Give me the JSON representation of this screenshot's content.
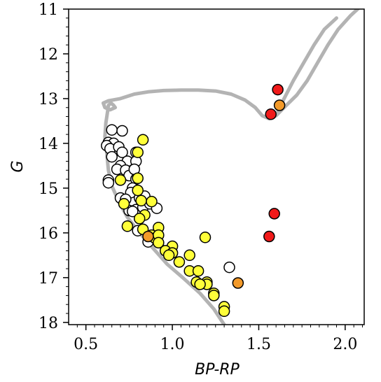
{
  "chart_data": {
    "type": "scatter",
    "xlabel": "BP-RP",
    "ylabel": "G",
    "xlim": [
      0.4,
      2.11
    ],
    "ylim": [
      18.05,
      11.0
    ],
    "y_inverted": true,
    "x_ticks": [
      0.5,
      1.0,
      1.5,
      2.0
    ],
    "x_tick_labels": [
      "0.5",
      "1.0",
      "1.5",
      "2.0"
    ],
    "y_ticks": [
      11,
      12,
      13,
      14,
      15,
      16,
      17,
      18
    ],
    "y_tick_labels": [
      "11",
      "12",
      "13",
      "14",
      "15",
      "16",
      "17",
      "18"
    ],
    "grid": false,
    "legend": false,
    "isochrone": {
      "color": "#b3b3b3",
      "points": [
        [
          1.3,
          18.05
        ],
        [
          1.24,
          17.7
        ],
        [
          1.16,
          17.35
        ],
        [
          1.06,
          17.0
        ],
        [
          0.97,
          16.7
        ],
        [
          0.89,
          16.35
        ],
        [
          0.81,
          16.0
        ],
        [
          0.74,
          15.65
        ],
        [
          0.69,
          15.3
        ],
        [
          0.65,
          14.95
        ],
        [
          0.63,
          14.6
        ],
        [
          0.62,
          14.2
        ],
        [
          0.61,
          13.85
        ],
        [
          0.615,
          13.55
        ],
        [
          0.625,
          13.3
        ],
        [
          0.63,
          13.15
        ],
        [
          0.645,
          13.1
        ],
        [
          0.66,
          13.15
        ],
        [
          0.67,
          13.2
        ],
        [
          0.64,
          13.25
        ],
        [
          0.61,
          13.2
        ],
        [
          0.6,
          13.1
        ],
        [
          0.63,
          13.05
        ],
        [
          0.7,
          13.0
        ],
        [
          0.78,
          12.9
        ],
        [
          0.86,
          12.85
        ],
        [
          0.95,
          12.82
        ],
        [
          1.05,
          12.81
        ],
        [
          1.15,
          12.81
        ],
        [
          1.25,
          12.83
        ],
        [
          1.34,
          12.9
        ],
        [
          1.42,
          13.03
        ],
        [
          1.48,
          13.2
        ],
        [
          1.52,
          13.38
        ],
        [
          1.56,
          13.45
        ],
        [
          1.6,
          13.38
        ],
        [
          1.66,
          13.15
        ],
        [
          1.72,
          12.92
        ],
        [
          1.78,
          12.6
        ],
        [
          1.84,
          12.2
        ],
        [
          1.9,
          11.8
        ],
        [
          1.96,
          11.45
        ],
        [
          2.03,
          11.15
        ],
        [
          2.1,
          10.9
        ]
      ],
      "branch": [
        [
          1.6,
          13.38
        ],
        [
          1.64,
          13.05
        ],
        [
          1.7,
          12.6
        ],
        [
          1.76,
          12.2
        ],
        [
          1.82,
          11.8
        ],
        [
          1.88,
          11.45
        ],
        [
          1.95,
          11.2
        ]
      ]
    },
    "series": [
      {
        "color": "#ffffff",
        "points": [
          [
            0.65,
            13.7
          ],
          [
            0.71,
            13.72
          ],
          [
            0.63,
            13.98
          ],
          [
            0.66,
            14.0
          ],
          [
            0.62,
            14.05
          ],
          [
            0.64,
            14.12
          ],
          [
            0.69,
            14.08
          ],
          [
            0.71,
            14.2
          ],
          [
            0.65,
            14.3
          ],
          [
            0.74,
            14.4
          ],
          [
            0.79,
            14.2
          ],
          [
            0.79,
            14.4
          ],
          [
            0.7,
            14.5
          ],
          [
            0.68,
            14.58
          ],
          [
            0.73,
            14.6
          ],
          [
            0.75,
            14.72
          ],
          [
            0.78,
            14.58
          ],
          [
            0.79,
            14.8
          ],
          [
            0.63,
            14.82
          ],
          [
            0.63,
            14.88
          ],
          [
            0.77,
            15.0
          ],
          [
            0.76,
            15.1
          ],
          [
            0.7,
            15.22
          ],
          [
            0.73,
            15.25
          ],
          [
            0.81,
            15.22
          ],
          [
            0.84,
            15.18
          ],
          [
            0.79,
            15.48
          ],
          [
            0.83,
            15.43
          ],
          [
            0.87,
            15.35
          ],
          [
            0.91,
            15.45
          ],
          [
            0.75,
            15.5
          ],
          [
            0.77,
            15.52
          ],
          [
            0.8,
            15.95
          ],
          [
            0.86,
            16.2
          ],
          [
            1.33,
            16.77
          ]
        ]
      },
      {
        "color": "#ffff3a",
        "points": [
          [
            0.83,
            13.92
          ],
          [
            0.8,
            14.2
          ],
          [
            0.7,
            14.82
          ],
          [
            0.8,
            14.78
          ],
          [
            0.8,
            15.05
          ],
          [
            0.72,
            15.35
          ],
          [
            0.82,
            15.28
          ],
          [
            0.88,
            15.3
          ],
          [
            0.84,
            15.6
          ],
          [
            0.81,
            15.68
          ],
          [
            0.74,
            15.85
          ],
          [
            0.83,
            15.92
          ],
          [
            0.92,
            15.88
          ],
          [
            0.88,
            16.05
          ],
          [
            0.9,
            16.12
          ],
          [
            0.92,
            16.05
          ],
          [
            0.92,
            16.22
          ],
          [
            1.0,
            16.3
          ],
          [
            0.96,
            16.4
          ],
          [
            1.0,
            16.45
          ],
          [
            0.98,
            16.5
          ],
          [
            1.04,
            16.65
          ],
          [
            1.1,
            16.5
          ],
          [
            1.1,
            16.85
          ],
          [
            1.15,
            16.85
          ],
          [
            1.14,
            17.1
          ],
          [
            1.2,
            17.1
          ],
          [
            1.2,
            17.15
          ],
          [
            1.24,
            17.35
          ],
          [
            1.24,
            17.4
          ],
          [
            1.3,
            17.65
          ],
          [
            1.3,
            17.75
          ],
          [
            1.19,
            16.1
          ],
          [
            1.16,
            17.15
          ]
        ]
      },
      {
        "color": "#f39a2a",
        "points": [
          [
            0.86,
            16.08
          ],
          [
            1.38,
            17.12
          ],
          [
            1.62,
            13.15
          ]
        ]
      },
      {
        "color": "#f11a1a",
        "points": [
          [
            1.61,
            12.8
          ],
          [
            1.57,
            13.35
          ],
          [
            1.59,
            15.57
          ],
          [
            1.56,
            16.08
          ]
        ]
      }
    ]
  }
}
